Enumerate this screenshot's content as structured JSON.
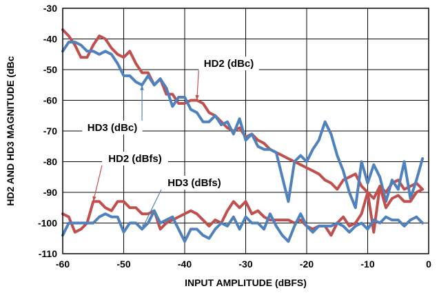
{
  "chart_data": {
    "type": "line",
    "xlabel": "INPUT AMPLITUDE (dBFS)",
    "ylabel": "HD2 AND HD3 MAGNITUDE (dBc",
    "xlim": [
      -60,
      0
    ],
    "ylim": [
      -110,
      -30
    ],
    "xticks": [
      -60,
      -50,
      -40,
      -30,
      -20,
      -10,
      0
    ],
    "yticks": [
      -30,
      -40,
      -50,
      -60,
      -70,
      -80,
      -90,
      -100,
      -110
    ],
    "grid": true,
    "colors": {
      "red": "#C0504D",
      "blue": "#4F81BD"
    },
    "series": [
      {
        "name": "HD2 (dBc)",
        "color": "red",
        "x": [
          -60,
          -59,
          -58,
          -57,
          -56,
          -55,
          -54,
          -53,
          -52,
          -51,
          -50,
          -49,
          -48,
          -47,
          -46,
          -45,
          -44,
          -43,
          -42,
          -41,
          -40,
          -39,
          -38,
          -37,
          -36,
          -35,
          -34,
          -33,
          -32,
          -31,
          -30,
          -29,
          -28,
          -27,
          -26,
          -25,
          -24,
          -23,
          -22,
          -21,
          -20,
          -19,
          -18,
          -17,
          -16,
          -15,
          -14,
          -13,
          -12,
          -11,
          -10,
          -9,
          -8,
          -7,
          -6,
          -5,
          -4,
          -3,
          -2,
          -1
        ],
        "values": [
          -37,
          -39,
          -42,
          -46,
          -46,
          -42,
          -39,
          -40,
          -43,
          -45,
          -46,
          -44,
          -48,
          -51,
          -51,
          -55,
          -53,
          -58,
          -58,
          -61,
          -61,
          -60,
          -60,
          -61,
          -64,
          -65,
          -67,
          -69,
          -70,
          -69,
          -72,
          -71,
          -73,
          -74,
          -76,
          -77,
          -78,
          -79,
          -80,
          -81,
          -82,
          -83,
          -84,
          -86,
          -87,
          -89,
          -86,
          -85,
          -84,
          -88,
          -90,
          -92,
          -88,
          -90,
          -87,
          -86,
          -89,
          -88,
          -87,
          -89
        ]
      },
      {
        "name": "HD3 (dBc)",
        "color": "blue",
        "x": [
          -60,
          -59,
          -58,
          -57,
          -56,
          -55,
          -54,
          -53,
          -52,
          -51,
          -50,
          -49,
          -48,
          -47,
          -46,
          -45,
          -44,
          -43,
          -42,
          -41,
          -40,
          -39,
          -38,
          -37,
          -36,
          -35,
          -34,
          -33,
          -32,
          -31,
          -30,
          -29,
          -28,
          -27,
          -26,
          -25,
          -24,
          -23,
          -22,
          -21,
          -20,
          -19,
          -18,
          -17,
          -16,
          -15,
          -14,
          -13,
          -12,
          -11,
          -10,
          -9,
          -8,
          -7,
          -6,
          -5,
          -4,
          -3,
          -2,
          -1
        ],
        "values": [
          -44,
          -41,
          -41,
          -42,
          -44,
          -44,
          -45,
          -44,
          -45,
          -48,
          -52,
          -52,
          -54,
          -55,
          -52,
          -55,
          -53,
          -56,
          -62,
          -59,
          -59,
          -63,
          -64,
          -67,
          -67,
          -65,
          -68,
          -67,
          -71,
          -66,
          -73,
          -71,
          -75,
          -76,
          -76,
          -77,
          -85,
          -93,
          -80,
          -78,
          -80,
          -76,
          -73,
          -67,
          -71,
          -78,
          -83,
          -90,
          -95,
          -80,
          -87,
          -81,
          -85,
          -93,
          -86,
          -89,
          -80,
          -92,
          -86,
          -79
        ]
      },
      {
        "name": "HD2 (dBfs)",
        "color": "red",
        "x": [
          -60,
          -59,
          -58,
          -57,
          -56,
          -55,
          -54,
          -53,
          -52,
          -51,
          -50,
          -49,
          -48,
          -47,
          -46,
          -45,
          -44,
          -43,
          -42,
          -41,
          -40,
          -39,
          -38,
          -37,
          -36,
          -35,
          -34,
          -33,
          -32,
          -31,
          -30,
          -29,
          -28,
          -27,
          -26,
          -25,
          -24,
          -23,
          -22,
          -21,
          -20,
          -19,
          -18,
          -17,
          -16,
          -15,
          -14,
          -13,
          -12,
          -11,
          -10,
          -9,
          -8,
          -7,
          -6,
          -5,
          -4,
          -3,
          -2,
          -1
        ],
        "values": [
          -97,
          -98,
          -103,
          -102,
          -100,
          -93,
          -93,
          -95,
          -96,
          -93,
          -93,
          -95,
          -95,
          -97,
          -97,
          -96,
          -102,
          -100,
          -99,
          -98,
          -97,
          -96,
          -97,
          -99,
          -101,
          -99,
          -100,
          -96,
          -93,
          -95,
          -93,
          -97,
          -96,
          -98,
          -99,
          -99,
          -99,
          -99,
          -100,
          -99,
          -101,
          -102,
          -101,
          -101,
          -104,
          -100,
          -98,
          -101,
          -100,
          -97,
          -90,
          -103,
          -88,
          -95,
          -92,
          -91,
          -93,
          -93,
          -90,
          -89
        ]
      },
      {
        "name": "HD3 (dBfs)",
        "color": "blue",
        "x": [
          -60,
          -59,
          -58,
          -57,
          -56,
          -55,
          -54,
          -53,
          -52,
          -51,
          -50,
          -49,
          -48,
          -47,
          -46,
          -45,
          -44,
          -43,
          -42,
          -41,
          -40,
          -39,
          -38,
          -37,
          -36,
          -35,
          -34,
          -33,
          -32,
          -31,
          -30,
          -29,
          -28,
          -27,
          -26,
          -25,
          -24,
          -23,
          -22,
          -21,
          -20,
          -19,
          -18,
          -17,
          -16,
          -15,
          -14,
          -13,
          -12,
          -11,
          -10,
          -9,
          -8,
          -7,
          -6,
          -5,
          -4,
          -3,
          -2,
          -1
        ],
        "values": [
          -104,
          -100,
          -100,
          -100,
          -100,
          -100,
          -98,
          -97,
          -98,
          -98,
          -103,
          -100,
          -100,
          -102,
          -100,
          -96,
          -100,
          -99,
          -98,
          -102,
          -106,
          -102,
          -102,
          -104,
          -105,
          -102,
          -100,
          -101,
          -98,
          -102,
          -98,
          -100,
          -100,
          -102,
          -97,
          -101,
          -104,
          -106,
          -101,
          -97,
          -101,
          -103,
          -101,
          -101,
          -101,
          -100,
          -101,
          -103,
          -101,
          -100,
          -102,
          -99,
          -100,
          -98,
          -99,
          -99,
          -101,
          -99,
          -98,
          -100
        ]
      }
    ],
    "annotations": [
      {
        "text": "HD2 (dBc)",
        "series": 0,
        "point_x": -38
      },
      {
        "text": "HD3 (dBc)",
        "series": 1,
        "point_x": -47
      },
      {
        "text": "HD2 (dBfs)",
        "series": 2,
        "point_x": -55
      },
      {
        "text": "HD3 (dBfs)",
        "series": 3,
        "point_x": -47
      }
    ]
  }
}
